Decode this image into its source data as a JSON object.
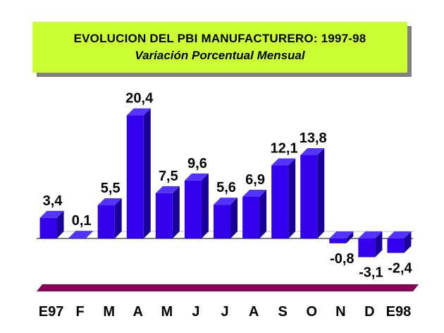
{
  "title": {
    "line1": "EVOLUCION DEL PBI MANUFACTURERO: 1997-98",
    "line2": "Variación Porcentual Mensual"
  },
  "colors": {
    "title_bg": "#ccff33",
    "bar_front": "#3300ee",
    "bar_top": "#5533ff",
    "bar_side": "#1a0099",
    "base_band": "#880055",
    "axis": "#000000"
  },
  "chart_data": {
    "type": "bar",
    "title": "EVOLUCION DEL PBI MANUFACTURERO: 1997-98",
    "subtitle": "Variación Porcentual Mensual",
    "categories": [
      "E97",
      "F",
      "M",
      "A",
      "M",
      "J",
      "J",
      "A",
      "S",
      "O",
      "N",
      "D",
      "E98"
    ],
    "values": [
      3.4,
      0.1,
      5.5,
      20.4,
      7.5,
      9.6,
      5.6,
      6.9,
      12.1,
      13.8,
      -0.8,
      -3.1,
      -2.4
    ],
    "value_labels": [
      "3,4",
      "0,1",
      "5,5",
      "20,4",
      "7,5",
      "9,6",
      "5,6",
      "6,9",
      "12,1",
      "13,8",
      "-0,8",
      "-3,1",
      "-2,4"
    ],
    "xlabel": "",
    "ylabel": "",
    "ylim": [
      -4,
      21
    ],
    "grid": false,
    "legend": "none"
  }
}
